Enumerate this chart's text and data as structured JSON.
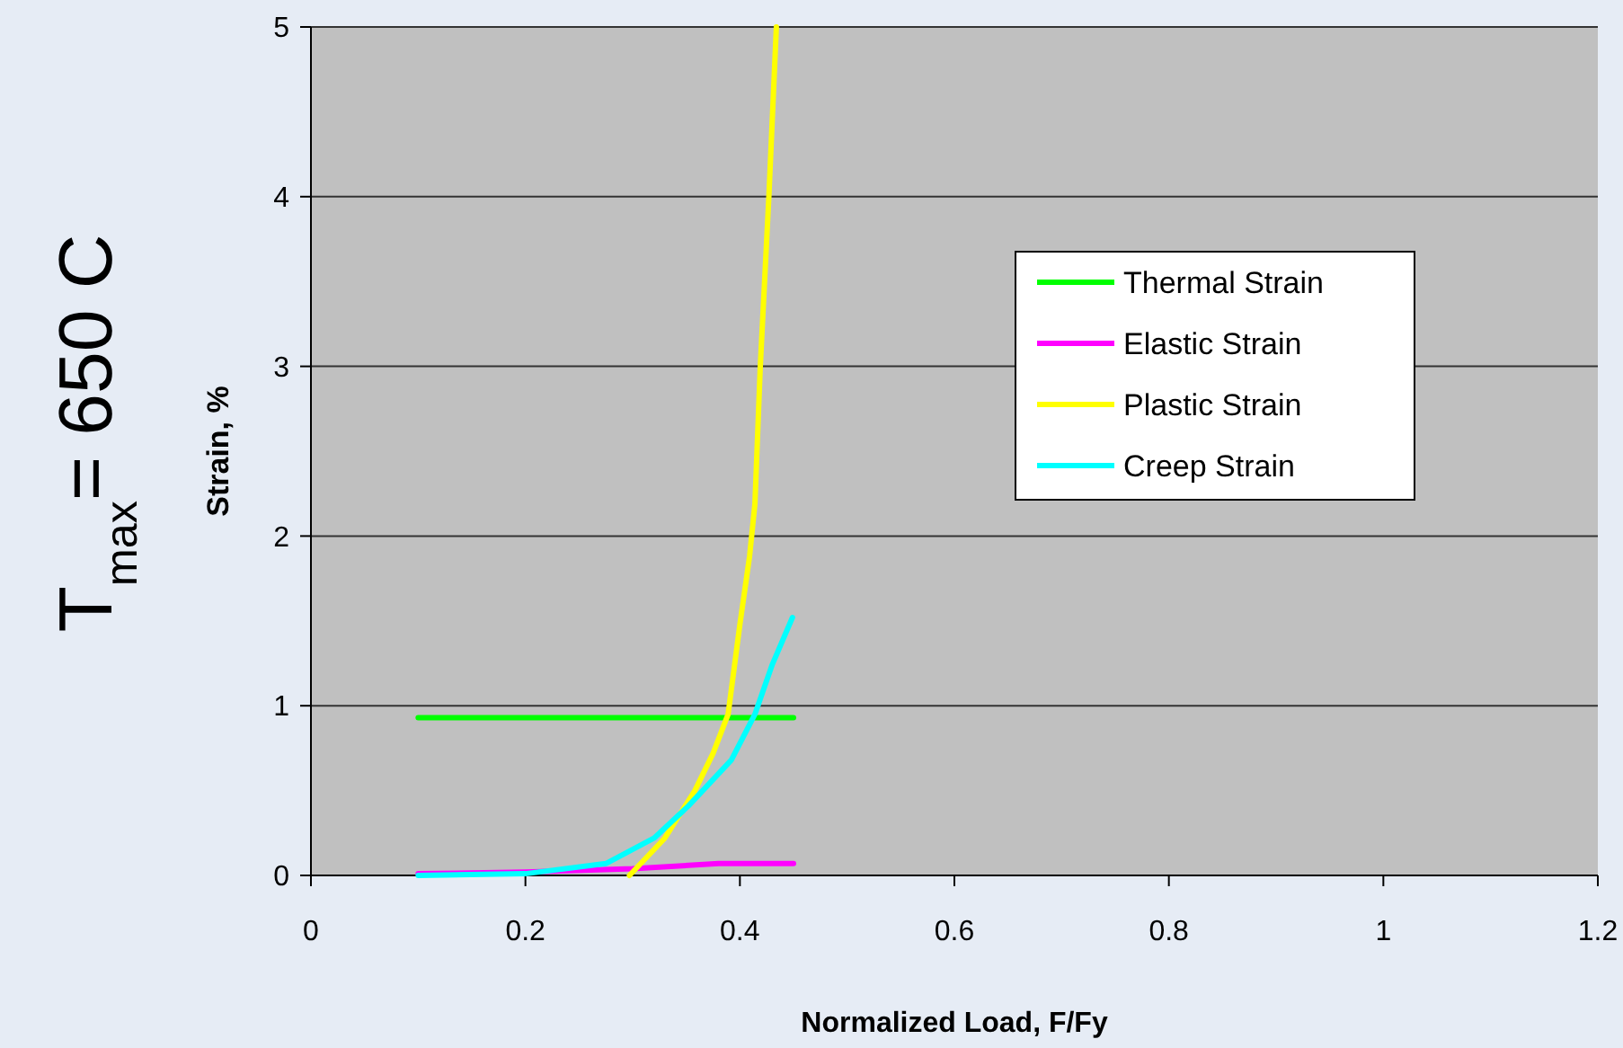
{
  "chart_data": {
    "type": "line",
    "title": "T$_{max}$= 650 C",
    "xlabel": "Normalized Load, F/Fy",
    "ylabel": "Strain, %",
    "xlim": [
      0,
      1.2
    ],
    "xticks": [
      0,
      0.2,
      0.4,
      0.6,
      0.8,
      1,
      1.2
    ],
    "ylim": [
      0,
      5
    ],
    "yticks": [
      0,
      1,
      2,
      3,
      4,
      5
    ],
    "grid": "y",
    "legend": "top right",
    "line_style": "solid",
    "series": [
      {
        "name": "Thermal Strain",
        "color": "#00ff00",
        "x": [
          0.1,
          0.45
        ],
        "values": [
          0.93,
          0.93
        ]
      },
      {
        "name": "Elastic Strain",
        "color": "#ff00ff",
        "x": [
          0.1,
          0.2,
          0.3,
          0.38,
          0.45
        ],
        "values": [
          0.01,
          0.02,
          0.04,
          0.07,
          0.07
        ]
      },
      {
        "name": "Plastic Strain",
        "color": "#ffff00",
        "x": [
          0.297,
          0.33,
          0.358,
          0.375,
          0.389,
          0.4,
          0.409,
          0.414,
          0.419,
          0.427,
          0.434
        ],
        "values": [
          0,
          0.22,
          0.5,
          0.72,
          0.95,
          1.48,
          1.88,
          2.19,
          3,
          4,
          5
        ]
      },
      {
        "name": "Creep Strain",
        "color": "#00ffff",
        "x": [
          0.1,
          0.2,
          0.275,
          0.32,
          0.352,
          0.392,
          0.414,
          0.43,
          0.449
        ],
        "values": [
          0,
          0.01,
          0.07,
          0.22,
          0.41,
          0.68,
          0.95,
          1.24,
          1.52
        ]
      }
    ]
  }
}
